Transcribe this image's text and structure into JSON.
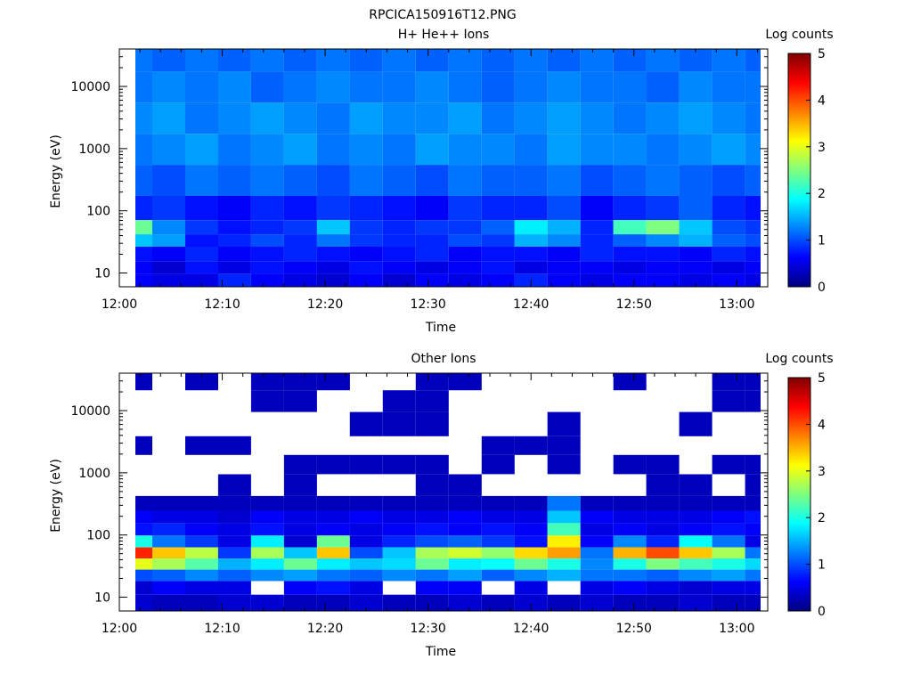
{
  "figure": {
    "title": "RPCICA150916T12.PNG"
  },
  "colorbar_stops": [
    "#00007f",
    "#0000ff",
    "#007fff",
    "#00ffff",
    "#7fff7f",
    "#ffff00",
    "#ff7f00",
    "#ff0000",
    "#7f0000"
  ],
  "chart_data": [
    {
      "type": "heatmap",
      "title": "H+ He++ Ions",
      "xlabel": "Time",
      "ylabel": "Energy (eV)",
      "xlim": [
        "12:00",
        "13:03"
      ],
      "ylim": [
        6,
        40000
      ],
      "yscale": "log",
      "x_ticks": [
        "12:00",
        "12:10",
        "12:20",
        "12:30",
        "12:40",
        "12:50",
        "13:00"
      ],
      "y_ticks": [
        "10",
        "100",
        "1000",
        "10000"
      ],
      "colorbar": {
        "label": "Log counts",
        "range": [
          0,
          5
        ],
        "ticks": [
          "0",
          "1",
          "2",
          "3",
          "4",
          "5"
        ]
      },
      "time_bins": [
        "12:01.6",
        "12:04.8",
        "12:08.0",
        "12:11.2",
        "12:14.4",
        "12:17.6",
        "12:20.8",
        "12:24.0",
        "12:27.2",
        "12:30.4",
        "12:33.6",
        "12:36.8",
        "12:40.0",
        "12:43.2",
        "12:46.4",
        "12:49.6",
        "12:52.8",
        "12:56.0",
        "12:59.2",
        "13:02.4"
      ],
      "energy_bands": [
        {
          "energy": "30000",
          "levels": [
            1.2,
            1.1,
            1.2,
            1.1,
            1.2,
            1.1,
            1.2,
            1.1,
            1.2,
            1.1,
            1.2,
            1.1,
            1.2,
            1.1,
            1.2,
            1.1,
            1.2,
            1.1,
            1.2,
            1.1
          ]
        },
        {
          "energy": "10000",
          "levels": [
            1.2,
            1.3,
            1.2,
            1.3,
            1.1,
            1.2,
            1.3,
            1.2,
            1.2,
            1.3,
            1.2,
            1.1,
            1.2,
            1.3,
            1.2,
            1.2,
            1.1,
            1.3,
            1.2,
            1.2
          ]
        },
        {
          "energy": "3000",
          "levels": [
            1.3,
            1.4,
            1.2,
            1.3,
            1.4,
            1.3,
            1.2,
            1.4,
            1.3,
            1.3,
            1.4,
            1.2,
            1.3,
            1.4,
            1.3,
            1.2,
            1.3,
            1.4,
            1.3,
            1.2
          ]
        },
        {
          "energy": "1000",
          "levels": [
            1.2,
            1.3,
            1.4,
            1.2,
            1.3,
            1.4,
            1.2,
            1.3,
            1.2,
            1.4,
            1.3,
            1.3,
            1.2,
            1.4,
            1.3,
            1.3,
            1.2,
            1.3,
            1.4,
            1.3
          ]
        },
        {
          "energy": "300",
          "levels": [
            1.1,
            1.0,
            1.2,
            1.1,
            1.2,
            1.1,
            1.0,
            1.2,
            1.1,
            1.0,
            1.2,
            1.1,
            1.1,
            1.2,
            1.0,
            1.1,
            1.2,
            1.1,
            1.0,
            1.1
          ]
        },
        {
          "energy": "100",
          "levels": [
            0.8,
            0.9,
            0.7,
            0.6,
            0.8,
            0.7,
            0.9,
            0.8,
            0.7,
            0.6,
            0.9,
            0.8,
            0.8,
            1.0,
            0.6,
            0.8,
            0.9,
            1.1,
            0.8,
            0.7
          ]
        },
        {
          "energy": "50",
          "levels": [
            2.4,
            1.3,
            0.9,
            0.7,
            0.8,
            0.9,
            1.6,
            0.9,
            0.8,
            0.9,
            0.9,
            1.1,
            1.8,
            1.5,
            0.8,
            2.2,
            2.5,
            1.6,
            1.0,
            0.9
          ]
        },
        {
          "energy": "35",
          "levels": [
            1.6,
            1.4,
            0.7,
            0.8,
            1.0,
            0.8,
            1.2,
            0.9,
            0.8,
            0.8,
            1.0,
            0.9,
            1.5,
            1.3,
            0.8,
            1.1,
            1.3,
            1.5,
            1.1,
            1.0
          ]
        },
        {
          "energy": "20",
          "levels": [
            0.7,
            0.6,
            0.8,
            0.6,
            0.7,
            0.8,
            0.7,
            0.6,
            0.7,
            0.8,
            0.6,
            0.7,
            0.7,
            0.6,
            0.8,
            0.7,
            0.7,
            0.6,
            0.8,
            0.7
          ]
        },
        {
          "energy": "12",
          "levels": [
            0.6,
            0.4,
            0.7,
            0.5,
            0.7,
            0.6,
            0.5,
            0.7,
            0.6,
            0.5,
            0.6,
            0.7,
            0.5,
            0.6,
            0.6,
            0.5,
            0.6,
            0.6,
            0.5,
            0.6
          ]
        },
        {
          "energy": "8",
          "levels": [
            0.6,
            0.5,
            0.5,
            0.8,
            0.6,
            0.5,
            0.4,
            0.6,
            0.4,
            0.6,
            0.5,
            0.6,
            0.8,
            0.6,
            0.5,
            0.6,
            0.6,
            0.5,
            0.6,
            0.5
          ]
        }
      ]
    },
    {
      "type": "heatmap",
      "title": "Other Ions",
      "xlabel": "Time",
      "ylabel": "Energy (eV)",
      "xlim": [
        "12:00",
        "13:03"
      ],
      "ylim": [
        6,
        40000
      ],
      "yscale": "log",
      "x_ticks": [
        "12:00",
        "12:10",
        "12:20",
        "12:30",
        "12:40",
        "12:50",
        "13:00"
      ],
      "y_ticks": [
        "10",
        "100",
        "1000",
        "10000"
      ],
      "colorbar": {
        "label": "Log counts",
        "range": [
          0,
          5
        ],
        "ticks": [
          "0",
          "1",
          "2",
          "3",
          "4",
          "5"
        ]
      },
      "time_bins": [
        "12:01.6",
        "12:04.8",
        "12:08.0",
        "12:11.2",
        "12:14.4",
        "12:17.6",
        "12:20.8",
        "12:24.0",
        "12:27.2",
        "12:30.4",
        "12:33.6",
        "12:36.8",
        "12:40.0",
        "12:43.2",
        "12:46.4",
        "12:49.6",
        "12:52.8",
        "12:56.0",
        "12:59.2",
        "13:02.4"
      ],
      "energy_bands": [
        {
          "energy": "30000",
          "levels": [
            0.3,
            null,
            0.3,
            null,
            0.3,
            0.3,
            0.3,
            null,
            null,
            0.3,
            0.3,
            null,
            null,
            null,
            null,
            0.3,
            null,
            null,
            0.3,
            0.3
          ]
        },
        {
          "energy": "15000",
          "levels": [
            null,
            null,
            null,
            null,
            0.3,
            0.3,
            null,
            null,
            0.3,
            0.3,
            null,
            null,
            null,
            null,
            null,
            null,
            null,
            null,
            0.3,
            0.3
          ]
        },
        {
          "energy": "6000",
          "levels": [
            null,
            null,
            null,
            null,
            null,
            null,
            null,
            0.3,
            0.3,
            0.3,
            null,
            null,
            null,
            0.3,
            null,
            null,
            null,
            0.3,
            null,
            null
          ]
        },
        {
          "energy": "2500",
          "levels": [
            0.3,
            null,
            0.3,
            0.3,
            null,
            null,
            null,
            null,
            null,
            null,
            null,
            0.3,
            0.3,
            0.3,
            null,
            null,
            null,
            null,
            null,
            null
          ]
        },
        {
          "energy": "1500",
          "levels": [
            null,
            null,
            null,
            null,
            null,
            0.3,
            0.3,
            0.3,
            0.3,
            0.3,
            null,
            0.3,
            null,
            0.3,
            null,
            0.3,
            0.3,
            null,
            0.3,
            0.3
          ]
        },
        {
          "energy": "600",
          "levels": [
            null,
            null,
            null,
            0.3,
            null,
            0.3,
            null,
            null,
            null,
            0.3,
            0.3,
            null,
            null,
            null,
            null,
            null,
            0.3,
            0.3,
            null,
            0.3
          ]
        },
        {
          "energy": "300",
          "levels": [
            0.3,
            0.3,
            0.3,
            0.3,
            0.3,
            0.3,
            0.3,
            0.3,
            0.3,
            0.3,
            0.3,
            0.3,
            0.3,
            1.2,
            0.3,
            0.3,
            0.3,
            0.3,
            0.3,
            0.3
          ]
        },
        {
          "energy": "200",
          "levels": [
            0.6,
            0.5,
            0.5,
            0.4,
            0.6,
            0.5,
            0.5,
            0.6,
            0.5,
            0.5,
            0.6,
            0.5,
            0.5,
            1.6,
            0.6,
            0.5,
            0.5,
            0.5,
            0.6,
            0.7
          ]
        },
        {
          "energy": "120",
          "levels": [
            0.7,
            0.8,
            0.6,
            0.5,
            0.7,
            0.5,
            0.6,
            0.5,
            0.6,
            0.7,
            0.6,
            0.7,
            0.6,
            2.2,
            0.5,
            0.6,
            0.5,
            0.6,
            0.7,
            0.6
          ]
        },
        {
          "energy": "80",
          "levels": [
            2.0,
            1.2,
            0.9,
            0.5,
            1.8,
            0.4,
            2.4,
            0.5,
            0.8,
            1.0,
            1.1,
            0.9,
            0.7,
            3.2,
            0.6,
            1.3,
            0.8,
            1.9,
            1.2,
            0.5
          ]
        },
        {
          "energy": "50",
          "levels": [
            4.2,
            3.4,
            2.8,
            0.9,
            2.7,
            1.6,
            3.4,
            1.0,
            1.6,
            2.7,
            2.9,
            2.6,
            3.3,
            3.6,
            1.2,
            3.5,
            4.0,
            3.4,
            2.7,
            1.2
          ]
        },
        {
          "energy": "35",
          "levels": [
            3.0,
            2.7,
            2.3,
            1.5,
            1.8,
            2.4,
            1.8,
            1.6,
            1.7,
            2.4,
            1.8,
            1.9,
            2.4,
            2.0,
            1.3,
            2.0,
            2.5,
            2.2,
            2.0,
            1.7
          ]
        },
        {
          "energy": "22",
          "levels": [
            1.0,
            1.1,
            1.3,
            1.1,
            1.3,
            1.4,
            1.2,
            1.1,
            1.3,
            1.2,
            1.4,
            1.1,
            1.3,
            1.5,
            1.2,
            1.2,
            1.1,
            1.3,
            1.4,
            1.2
          ]
        },
        {
          "energy": "15",
          "levels": [
            0.4,
            0.6,
            0.5,
            0.5,
            null,
            0.6,
            0.7,
            0.5,
            null,
            0.6,
            0.6,
            null,
            0.5,
            null,
            0.5,
            0.6,
            0.5,
            0.4,
            0.5,
            0.5
          ]
        },
        {
          "energy": "8",
          "levels": [
            0.4,
            0.3,
            0.3,
            0.4,
            0.4,
            0.3,
            0.3,
            0.4,
            0.3,
            0.3,
            0.4,
            0.3,
            0.4,
            0.3,
            0.4,
            0.3,
            0.3,
            0.4,
            0.3,
            0.3
          ]
        }
      ]
    }
  ]
}
